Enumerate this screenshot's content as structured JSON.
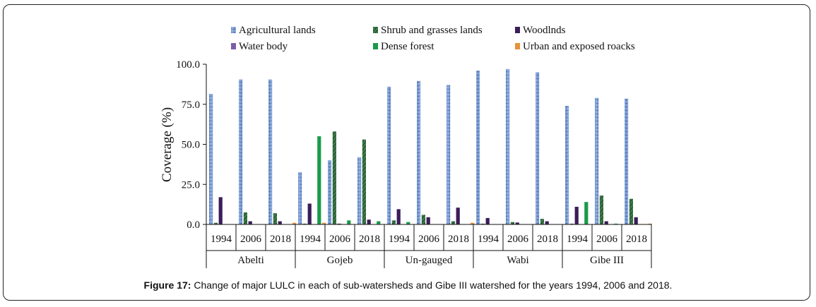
{
  "caption": {
    "label": "Figure 17:",
    "text": "Change of major LULC in each of sub-watersheds and Gibe III watershed for the years 1994, 2006 and 2018."
  },
  "chart_data": {
    "type": "bar",
    "ylabel": "Coverage (%)",
    "ylim": [
      0,
      100
    ],
    "yticks": [
      "0.0",
      "25.0",
      "50.0",
      "75.0",
      "100.0"
    ],
    "legend_placement": "top",
    "groups": [
      {
        "name": "Abelti",
        "years": [
          "1994",
          "2006",
          "2018"
        ]
      },
      {
        "name": "Gojeb",
        "years": [
          "1994",
          "2006",
          "2018"
        ]
      },
      {
        "name": "Un-gauged",
        "years": [
          "1994",
          "2006",
          "2018"
        ]
      },
      {
        "name": "Wabi",
        "years": [
          "1994",
          "2006",
          "2018"
        ]
      },
      {
        "name": "Gibe III",
        "years": [
          "1994",
          "2006",
          "2018"
        ]
      }
    ],
    "series": [
      {
        "name": "Agricultural lands",
        "color": "#6f8fc9",
        "values": [
          81.5,
          90.5,
          90.5,
          32.5,
          40.0,
          42.0,
          86.0,
          89.5,
          87.0,
          96.0,
          97.0,
          95.0,
          74.0,
          79.0,
          78.5
        ]
      },
      {
        "name": "Shrub and grasses lands",
        "color": "#3f7a4a",
        "values": [
          1.0,
          7.5,
          7.0,
          0.5,
          58.0,
          53.0,
          2.5,
          6.0,
          2.0,
          0.5,
          1.5,
          3.5,
          0.5,
          18.0,
          16.0
        ]
      },
      {
        "name": "Woodlnds",
        "color": "#3a1d59",
        "values": [
          17.0,
          2.0,
          2.0,
          13.0,
          0.5,
          3.0,
          9.5,
          4.5,
          10.5,
          4.0,
          1.2,
          2.0,
          11.0,
          2.0,
          4.5
        ]
      },
      {
        "name": "Water body",
        "color": "#7b5ea7",
        "values": [
          0.0,
          0.0,
          0.0,
          0.0,
          0.0,
          0.0,
          0.0,
          0.0,
          0.0,
          0.0,
          0.0,
          0.0,
          0.0,
          0.0,
          0.0
        ]
      },
      {
        "name": "Dense forest",
        "color": "#1a9a4a",
        "values": [
          0.0,
          0.0,
          0.0,
          55.0,
          2.5,
          2.0,
          1.5,
          0.0,
          0.0,
          0.0,
          0.0,
          0.0,
          14.0,
          0.5,
          0.0
        ]
      },
      {
        "name": "Urban and exposed roacks",
        "color": "#e8913a",
        "values": [
          0.0,
          0.0,
          1.0,
          1.0,
          0.0,
          0.0,
          0.0,
          0.0,
          1.0,
          0.0,
          0.0,
          0.0,
          0.0,
          0.0,
          0.5
        ]
      }
    ]
  }
}
